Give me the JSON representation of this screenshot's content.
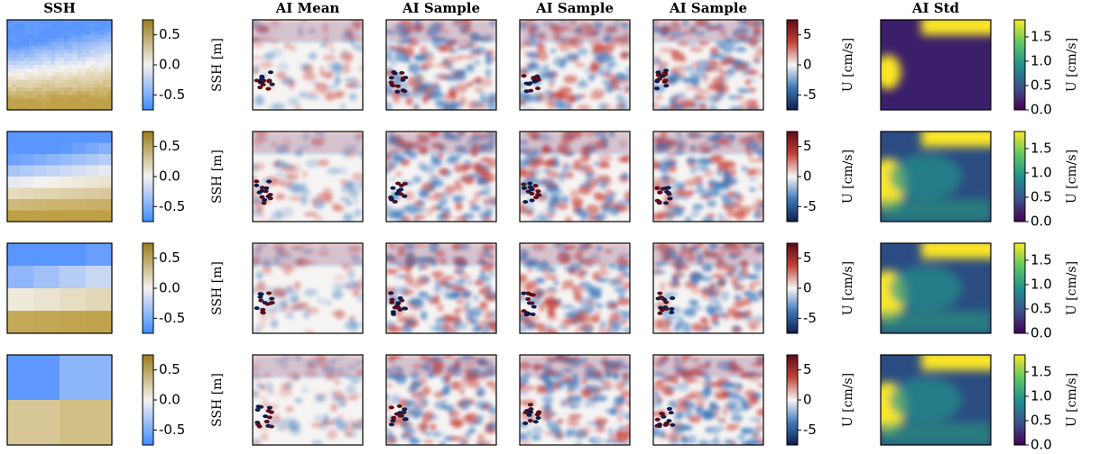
{
  "columns": [
    "SSH",
    "AI Mean",
    "AI Sample",
    "AI Sample",
    "AI Sample",
    "AI Std"
  ],
  "rows": [
    {
      "ssh_bar": {
        "label": "SSH [m]",
        "lim": [
          -0.75,
          0.75
        ],
        "ticks": [
          0.5,
          {
            "value": 0,
            "label": "0.0"
          },
          -0.5
        ]
      },
      "u_bar": {
        "label": "U [cm/s]",
        "lim": [
          -7.5,
          7.5
        ],
        "ticks": [
          5,
          0,
          -5
        ]
      },
      "std_bar": {
        "label": "U [cm/s]",
        "lim": [
          0,
          1.85
        ],
        "ticks": [
          1.5,
          {
            "value": 1,
            "label": "1.0"
          },
          0.5,
          {
            "value": 0,
            "label": "0.0"
          }
        ]
      }
    },
    {
      "ssh_bar": {
        "label": "SSH [m]",
        "lim": [
          -0.75,
          0.75
        ],
        "ticks": [
          0.5,
          {
            "value": 0,
            "label": "0.0"
          },
          -0.5
        ]
      },
      "u_bar": {
        "label": "U [cm/s]",
        "lim": [
          -7.5,
          7.5
        ],
        "ticks": [
          5,
          0,
          -5
        ]
      },
      "std_bar": {
        "label": "U [cm/s]",
        "lim": [
          0,
          1.85
        ],
        "ticks": [
          1.5,
          {
            "value": 1,
            "label": "1.0"
          },
          0.5,
          {
            "value": 0,
            "label": "0.0"
          }
        ]
      }
    },
    {
      "ssh_bar": {
        "label": "SSH [m]",
        "lim": [
          -0.75,
          0.75
        ],
        "ticks": [
          0.5,
          {
            "value": 0,
            "label": "0.0"
          },
          -0.5
        ]
      },
      "u_bar": {
        "label": "U [cm/s]",
        "lim": [
          -7.5,
          7.5
        ],
        "ticks": [
          5,
          0,
          -5
        ]
      },
      "std_bar": {
        "label": "U [cm/s]",
        "lim": [
          0,
          1.85
        ],
        "ticks": [
          1.5,
          {
            "value": 1,
            "label": "1.0"
          },
          0.5,
          {
            "value": 0,
            "label": "0.0"
          }
        ]
      }
    },
    {
      "ssh_bar": {
        "label": "SSH [m]",
        "lim": [
          -0.75,
          0.75
        ],
        "ticks": [
          0.5,
          {
            "value": 0,
            "label": "0.0"
          },
          -0.5
        ]
      },
      "u_bar": {
        "label": "U [cm/s]",
        "lim": [
          -7.5,
          7.5
        ],
        "ticks": [
          5,
          0,
          -5
        ]
      },
      "std_bar": {
        "label": "U [cm/s]",
        "lim": [
          0,
          1.85
        ],
        "ticks": [
          1.5,
          {
            "value": 1,
            "label": "1.0"
          },
          0.5,
          {
            "value": 0,
            "label": "0.0"
          }
        ]
      }
    }
  ]
}
